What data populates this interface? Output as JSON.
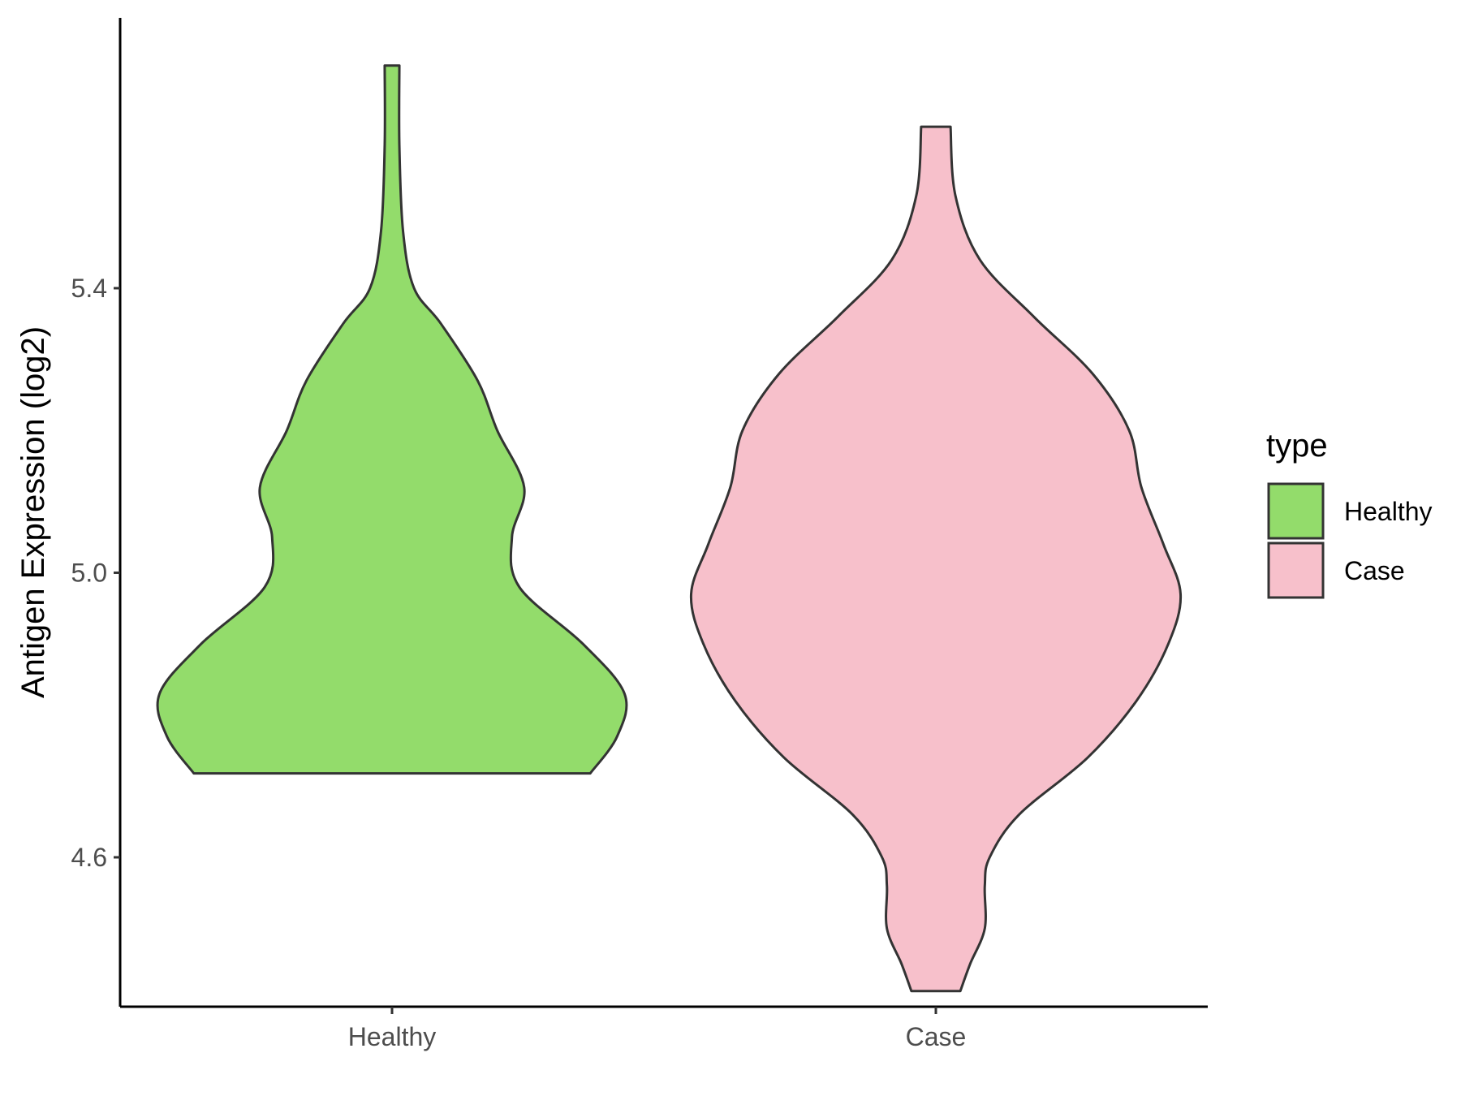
{
  "chart_data": {
    "type": "violin",
    "title": "",
    "xlabel": "",
    "ylabel": "Antigen Expression (log2)",
    "categories": [
      "Healthy",
      "Case"
    ],
    "ylim": [
      4.39,
      5.78
    ],
    "yticks": [
      4.6,
      5.0,
      5.4
    ],
    "ytick_labels": [
      "4.6",
      "5.0",
      "5.4"
    ],
    "grid": false,
    "legend": {
      "title": "type",
      "position": "right",
      "entries": [
        "Healthy",
        "Case"
      ]
    },
    "series": [
      {
        "name": "Healthy",
        "color": "#93dc6b",
        "min": 4.718,
        "max": 5.713,
        "profile": [
          [
            4.718,
            0.81
          ],
          [
            4.77,
            0.92
          ],
          [
            4.83,
            0.95
          ],
          [
            4.9,
            0.78
          ],
          [
            4.98,
            0.52
          ],
          [
            5.05,
            0.49
          ],
          [
            5.12,
            0.54
          ],
          [
            5.2,
            0.43
          ],
          [
            5.27,
            0.35
          ],
          [
            5.35,
            0.2
          ],
          [
            5.4,
            0.09
          ],
          [
            5.48,
            0.045
          ],
          [
            5.6,
            0.03
          ],
          [
            5.713,
            0.03
          ]
        ]
      },
      {
        "name": "Case",
        "color": "#f7c0cb",
        "min": 4.412,
        "max": 5.627,
        "profile": [
          [
            4.412,
            0.1
          ],
          [
            4.45,
            0.14
          ],
          [
            4.5,
            0.2
          ],
          [
            4.56,
            0.2
          ],
          [
            4.6,
            0.22
          ],
          [
            4.66,
            0.34
          ],
          [
            4.74,
            0.62
          ],
          [
            4.82,
            0.82
          ],
          [
            4.9,
            0.95
          ],
          [
            4.97,
            1.0
          ],
          [
            5.04,
            0.93
          ],
          [
            5.12,
            0.84
          ],
          [
            5.2,
            0.79
          ],
          [
            5.28,
            0.64
          ],
          [
            5.36,
            0.4
          ],
          [
            5.44,
            0.18
          ],
          [
            5.53,
            0.08
          ],
          [
            5.627,
            0.06
          ]
        ]
      }
    ]
  }
}
